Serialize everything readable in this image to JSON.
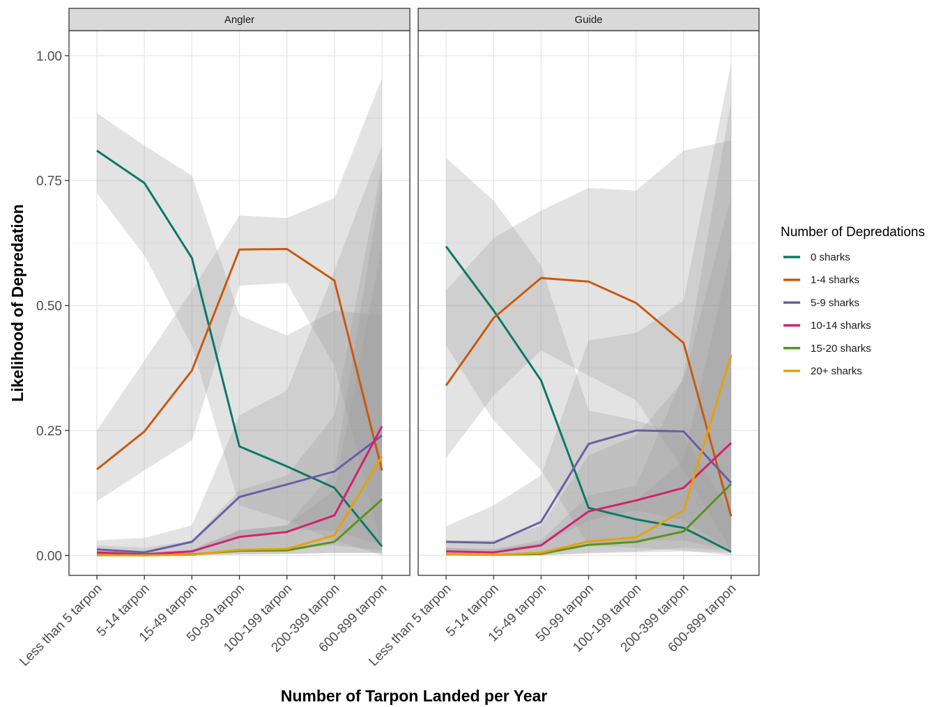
{
  "chart_data": {
    "type": "line",
    "xlabel": "Number of Tarpon Landed per Year",
    "ylabel": "Likelihood of Depredation",
    "ylim": [
      -0.04,
      1.05
    ],
    "y_ticks": [
      {
        "value": 0.0,
        "label": "0.00"
      },
      {
        "value": 0.25,
        "label": "0.25"
      },
      {
        "value": 0.5,
        "label": "0.50"
      },
      {
        "value": 0.75,
        "label": "0.75"
      },
      {
        "value": 1.0,
        "label": "1.00"
      }
    ],
    "categories": [
      "Less than 5 tarpon",
      "5-14 tarpon",
      "15-49 tarpon",
      "50-99 tarpon",
      "100-199 tarpon",
      "200-399 tarpon",
      "600-899 tarpon"
    ],
    "grid": true,
    "legend": {
      "title": "Number of Depredations",
      "placement": "right"
    },
    "series_meta": [
      {
        "name": "0 sharks",
        "color": "#0b7a62"
      },
      {
        "name": "1-4 sharks",
        "color": "#c85a0e"
      },
      {
        "name": "5-9 sharks",
        "color": "#6b5ea6"
      },
      {
        "name": "10-14 sharks",
        "color": "#d2226f"
      },
      {
        "name": "15-20 sharks",
        "color": "#5a9417"
      },
      {
        "name": "20+ sharks",
        "color": "#e8a00b"
      }
    ],
    "facets": [
      {
        "label": "Angler",
        "series": [
          {
            "name": "0 sharks",
            "values": [
              0.81,
              0.745,
              0.595,
              0.218,
              0.178,
              0.135,
              0.018
            ],
            "lower": [
              0.725,
              0.6,
              0.42,
              0.1,
              0.07,
              0.03,
              0.0
            ],
            "upper": [
              0.885,
              0.82,
              0.76,
              0.48,
              0.44,
              0.49,
              0.48
            ]
          },
          {
            "name": "1-4 sharks",
            "values": [
              0.172,
              0.248,
              0.37,
              0.612,
              0.613,
              0.55,
              0.17
            ],
            "lower": [
              0.108,
              0.17,
              0.23,
              0.54,
              0.545,
              0.38,
              0.02
            ],
            "upper": [
              0.25,
              0.39,
              0.53,
              0.68,
              0.675,
              0.715,
              0.955
            ]
          },
          {
            "name": "5-9 sharks",
            "values": [
              0.012,
              0.006,
              0.027,
              0.117,
              0.142,
              0.168,
              0.24
            ],
            "lower": [
              0.003,
              0.002,
              0.01,
              0.04,
              0.05,
              0.05,
              0.02
            ],
            "upper": [
              0.03,
              0.035,
              0.06,
              0.28,
              0.33,
              0.57,
              0.82
            ]
          },
          {
            "name": "10-14 sharks",
            "values": [
              0.006,
              0.002,
              0.008,
              0.037,
              0.047,
              0.08,
              0.258
            ],
            "lower": [
              0.001,
              0.0,
              0.002,
              0.01,
              0.015,
              0.02,
              0.01
            ],
            "upper": [
              0.02,
              0.015,
              0.03,
              0.13,
              0.16,
              0.28,
              0.78
            ]
          },
          {
            "name": "15-20 sharks",
            "values": [
              0.001,
              0.0,
              0.002,
              0.009,
              0.01,
              0.027,
              0.112
            ],
            "lower": [
              0.0,
              0.0,
              0.0,
              0.002,
              0.003,
              0.005,
              0.005
            ],
            "upper": [
              0.008,
              0.006,
              0.012,
              0.05,
              0.06,
              0.13,
              0.62
            ]
          },
          {
            "name": "20+ sharks",
            "values": [
              0.0,
              0.0,
              0.001,
              0.011,
              0.013,
              0.04,
              0.198
            ],
            "lower": [
              0.0,
              0.0,
              0.0,
              0.002,
              0.003,
              0.005,
              0.005
            ],
            "upper": [
              0.006,
              0.005,
              0.01,
              0.05,
              0.06,
              0.17,
              0.75
            ]
          }
        ]
      },
      {
        "label": "Guide",
        "series": [
          {
            "name": "0 sharks",
            "values": [
              0.618,
              0.49,
              0.35,
              0.095,
              0.072,
              0.055,
              0.007
            ],
            "lower": [
              0.42,
              0.27,
              0.17,
              0.02,
              0.015,
              0.01,
              0.0
            ],
            "upper": [
              0.795,
              0.71,
              0.58,
              0.29,
              0.27,
              0.24,
              0.08
            ]
          },
          {
            "name": "1-4 sharks",
            "values": [
              0.34,
              0.475,
              0.555,
              0.548,
              0.505,
              0.425,
              0.078
            ],
            "lower": [
              0.195,
              0.32,
              0.41,
              0.36,
              0.31,
              0.17,
              0.01
            ],
            "upper": [
              0.53,
              0.635,
              0.69,
              0.735,
              0.73,
              0.81,
              0.83
            ]
          },
          {
            "name": "5-9 sharks",
            "values": [
              0.027,
              0.025,
              0.067,
              0.223,
              0.25,
              0.248,
              0.145
            ],
            "lower": [
              0.01,
              0.01,
              0.02,
              0.07,
              0.09,
              0.07,
              0.01
            ],
            "upper": [
              0.058,
              0.1,
              0.16,
              0.43,
              0.445,
              0.51,
              0.985
            ]
          },
          {
            "name": "10-14 sharks",
            "values": [
              0.008,
              0.006,
              0.02,
              0.088,
              0.11,
              0.135,
              0.225
            ],
            "lower": [
              0.002,
              0.001,
              0.005,
              0.02,
              0.03,
              0.03,
              0.01
            ],
            "upper": [
              0.03,
              0.03,
              0.06,
              0.2,
              0.24,
              0.35,
              0.72
            ]
          },
          {
            "name": "15-20 sharks",
            "values": [
              0.002,
              0.001,
              0.003,
              0.021,
              0.027,
              0.048,
              0.143
            ],
            "lower": [
              0.0,
              0.0,
              0.0,
              0.004,
              0.006,
              0.008,
              0.005
            ],
            "upper": [
              0.015,
              0.012,
              0.025,
              0.09,
              0.11,
              0.19,
              0.61
            ]
          },
          {
            "name": "20+ sharks",
            "values": [
              0.002,
              0.001,
              0.005,
              0.028,
              0.036,
              0.09,
              0.4
            ],
            "lower": [
              0.0,
              0.0,
              0.0,
              0.005,
              0.008,
              0.015,
              0.01
            ],
            "upper": [
              0.015,
              0.012,
              0.03,
              0.12,
              0.14,
              0.36,
              0.91
            ]
          }
        ]
      }
    ]
  }
}
